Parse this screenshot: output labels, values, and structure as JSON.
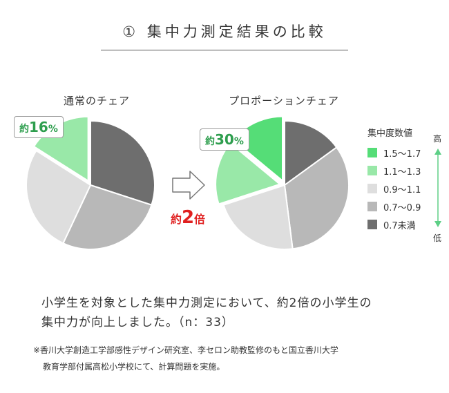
{
  "title": "① 集中力測定結果の比較",
  "ratio_label": {
    "prefix": "約",
    "value": "2",
    "suffix": "倍"
  },
  "legend": {
    "title": "集中度数値",
    "items": [
      {
        "label": "1.5〜1.7",
        "color": "#55dd77"
      },
      {
        "label": "1.1〜1.3",
        "color": "#99e8a8"
      },
      {
        "label": "0.9〜1.1",
        "color": "#dedede"
      },
      {
        "label": "0.7〜0.9",
        "color": "#b8b8b8"
      },
      {
        "label": "0.7未満",
        "color": "#6e6e6e"
      }
    ],
    "scale_high": "高",
    "scale_low": "低",
    "arrow_color": "#5dcf86"
  },
  "chart_data": [
    {
      "type": "pie",
      "title": "通常のチェア",
      "unit": "%",
      "slices": [
        {
          "label": "1.5〜1.7",
          "value": 0
        },
        {
          "label": "1.1〜1.3",
          "value": 16
        },
        {
          "label": "0.9〜1.1",
          "value": 27
        },
        {
          "label": "0.7〜0.9",
          "value": 27
        },
        {
          "label": "0.7未満",
          "value": 30
        }
      ],
      "exploded": [
        "1.1〜1.3"
      ],
      "callout": {
        "prefix": "約",
        "value": "16",
        "suffix": "%"
      }
    },
    {
      "type": "pie",
      "title": "プロポーションチェア",
      "unit": "%",
      "slices": [
        {
          "label": "1.5〜1.7",
          "value": 14
        },
        {
          "label": "1.1〜1.3",
          "value": 16
        },
        {
          "label": "0.9〜1.1",
          "value": 22
        },
        {
          "label": "0.7〜0.9",
          "value": 33
        },
        {
          "label": "0.7未満",
          "value": 15
        }
      ],
      "exploded": [
        "1.5〜1.7",
        "1.1〜1.3"
      ],
      "callout": {
        "prefix": "約",
        "value": "30",
        "suffix": "%"
      }
    }
  ],
  "description": {
    "line1": "小学生を対象とした集中力測定において、約2倍の小学生の",
    "line2": "集中力が向上しました。（n：33）"
  },
  "note": {
    "line1": "※香川大学創造工学部感性デザイン研究室、李セロン助教監修のもと国立香川大学",
    "line2": "教育学部付属高松小学校にて、計算問題を実施。"
  }
}
